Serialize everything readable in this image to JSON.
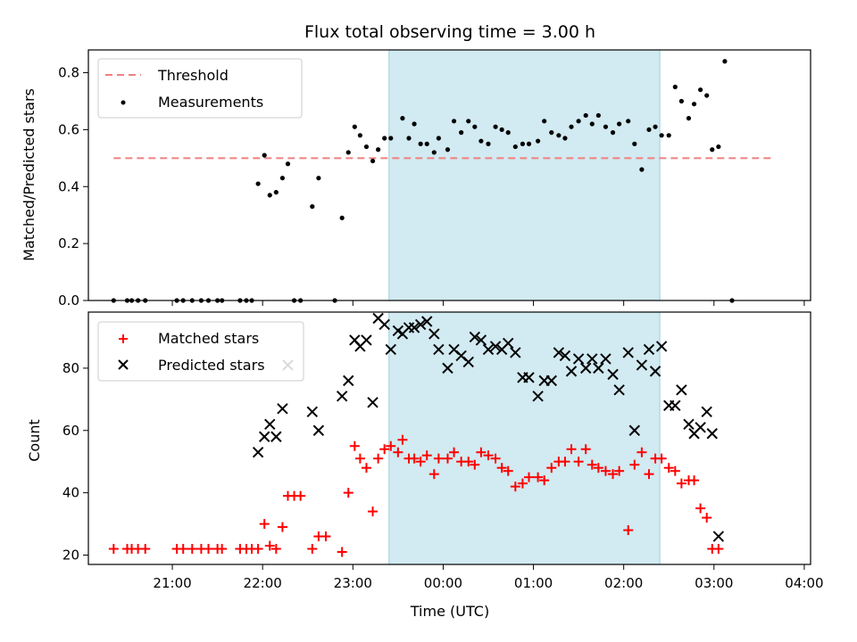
{
  "chart_data": [
    {
      "type": "scatter",
      "title": "Flux total observing time = 3.00 h",
      "xlabel": "",
      "ylabel": "Matched/Predicted stars",
      "xlim_hours": [
        -3.93,
        4.07
      ],
      "ylim": [
        0,
        0.88
      ],
      "yticks": [
        0.0,
        0.2,
        0.4,
        0.6,
        0.8
      ],
      "ytick_labels": [
        "0.0",
        "0.2",
        "0.4",
        "0.6",
        "0.8"
      ],
      "shaded_region_hours": [
        -0.6,
        2.4
      ],
      "shaded_color": "#add8e6",
      "legend_position": "upper left",
      "threshold": {
        "name": "Threshold",
        "y": 0.5,
        "x_range_hours": [
          -3.65,
          3.65
        ],
        "color": "#f08080"
      },
      "series": [
        {
          "name": "Measurements",
          "color": "#000000",
          "marker": "dot",
          "points": [
            [
              -3.65,
              0
            ],
            [
              -3.5,
              0
            ],
            [
              -3.45,
              0
            ],
            [
              -3.38,
              0
            ],
            [
              -3.3,
              0
            ],
            [
              -2.95,
              0
            ],
            [
              -2.88,
              0
            ],
            [
              -2.78,
              0
            ],
            [
              -2.68,
              0
            ],
            [
              -2.6,
              0
            ],
            [
              -2.5,
              0
            ],
            [
              -2.45,
              0
            ],
            [
              -2.25,
              0
            ],
            [
              -2.18,
              0
            ],
            [
              -2.12,
              0
            ],
            [
              -2.05,
              0.41
            ],
            [
              -1.98,
              0.51
            ],
            [
              -1.92,
              0.37
            ],
            [
              -1.85,
              0.38
            ],
            [
              -1.78,
              0.43
            ],
            [
              -1.72,
              0.48
            ],
            [
              -1.65,
              0
            ],
            [
              -1.58,
              0
            ],
            [
              -1.45,
              0.33
            ],
            [
              -1.38,
              0.43
            ],
            [
              -1.2,
              0
            ],
            [
              -1.12,
              0.29
            ],
            [
              -1.05,
              0.52
            ],
            [
              -0.98,
              0.61
            ],
            [
              -0.92,
              0.58
            ],
            [
              -0.85,
              0.54
            ],
            [
              -0.78,
              0.49
            ],
            [
              -0.72,
              0.53
            ],
            [
              -0.65,
              0.57
            ],
            [
              -0.58,
              0.57
            ],
            [
              -0.45,
              0.64
            ],
            [
              -0.38,
              0.57
            ],
            [
              -0.32,
              0.62
            ],
            [
              -0.25,
              0.55
            ],
            [
              -0.18,
              0.55
            ],
            [
              -0.1,
              0.52
            ],
            [
              -0.05,
              0.57
            ],
            [
              0.05,
              0.53
            ],
            [
              0.12,
              0.63
            ],
            [
              0.2,
              0.59
            ],
            [
              0.28,
              0.63
            ],
            [
              0.35,
              0.61
            ],
            [
              0.42,
              0.56
            ],
            [
              0.5,
              0.55
            ],
            [
              0.58,
              0.61
            ],
            [
              0.65,
              0.6
            ],
            [
              0.72,
              0.59
            ],
            [
              0.8,
              0.54
            ],
            [
              0.88,
              0.55
            ],
            [
              0.95,
              0.55
            ],
            [
              1.05,
              0.56
            ],
            [
              1.12,
              0.63
            ],
            [
              1.2,
              0.59
            ],
            [
              1.28,
              0.58
            ],
            [
              1.35,
              0.57
            ],
            [
              1.42,
              0.61
            ],
            [
              1.5,
              0.63
            ],
            [
              1.58,
              0.65
            ],
            [
              1.65,
              0.62
            ],
            [
              1.72,
              0.65
            ],
            [
              1.8,
              0.61
            ],
            [
              1.88,
              0.59
            ],
            [
              1.95,
              0.62
            ],
            [
              2.05,
              0.63
            ],
            [
              2.12,
              0.55
            ],
            [
              2.2,
              0.46
            ],
            [
              2.28,
              0.6
            ],
            [
              2.35,
              0.61
            ],
            [
              2.42,
              0.58
            ],
            [
              2.5,
              0.58
            ],
            [
              2.57,
              0.75
            ],
            [
              2.64,
              0.7
            ],
            [
              2.72,
              0.64
            ],
            [
              2.78,
              0.69
            ],
            [
              2.85,
              0.74
            ],
            [
              2.92,
              0.72
            ],
            [
              2.98,
              0.53
            ],
            [
              3.05,
              0.54
            ],
            [
              3.12,
              0.84
            ],
            [
              3.2,
              0
            ]
          ]
        }
      ]
    },
    {
      "type": "scatter",
      "title": "",
      "xlabel": "Time (UTC)",
      "ylabel": "Count",
      "xlim_hours": [
        -3.93,
        4.07
      ],
      "ylim": [
        17,
        98
      ],
      "yticks": [
        20,
        40,
        60,
        80
      ],
      "ytick_labels": [
        "20",
        "40",
        "60",
        "80"
      ],
      "xticks_hours": [
        -3,
        -2,
        -1,
        0,
        1,
        2,
        3,
        4
      ],
      "xtick_labels": [
        "21:00",
        "22:00",
        "23:00",
        "00:00",
        "01:00",
        "02:00",
        "03:00",
        "04:00"
      ],
      "shaded_region_hours": [
        -0.6,
        2.4
      ],
      "legend_position": "upper left",
      "series": [
        {
          "name": "Matched stars",
          "color": "#ff0000",
          "marker": "plus",
          "points": [
            [
              -3.65,
              22
            ],
            [
              -3.5,
              22
            ],
            [
              -3.45,
              22
            ],
            [
              -3.38,
              22
            ],
            [
              -3.3,
              22
            ],
            [
              -2.95,
              22
            ],
            [
              -2.88,
              22
            ],
            [
              -2.78,
              22
            ],
            [
              -2.68,
              22
            ],
            [
              -2.6,
              22
            ],
            [
              -2.5,
              22
            ],
            [
              -2.45,
              22
            ],
            [
              -2.25,
              22
            ],
            [
              -2.18,
              22
            ],
            [
              -2.12,
              22
            ],
            [
              -2.05,
              22
            ],
            [
              -1.98,
              30
            ],
            [
              -1.92,
              23
            ],
            [
              -1.85,
              22
            ],
            [
              -1.78,
              29
            ],
            [
              -1.72,
              39
            ],
            [
              -1.65,
              39
            ],
            [
              -1.58,
              39
            ],
            [
              -1.45,
              22
            ],
            [
              -1.38,
              26
            ],
            [
              -1.3,
              26
            ],
            [
              -1.12,
              21
            ],
            [
              -1.05,
              40
            ],
            [
              -0.98,
              55
            ],
            [
              -0.92,
              51
            ],
            [
              -0.85,
              48
            ],
            [
              -0.78,
              34
            ],
            [
              -0.72,
              51
            ],
            [
              -0.65,
              54
            ],
            [
              -0.58,
              55
            ],
            [
              -0.5,
              53
            ],
            [
              -0.45,
              57
            ],
            [
              -0.38,
              51
            ],
            [
              -0.32,
              51
            ],
            [
              -0.25,
              50
            ],
            [
              -0.18,
              52
            ],
            [
              -0.1,
              46
            ],
            [
              -0.05,
              51
            ],
            [
              0.05,
              51
            ],
            [
              0.12,
              53
            ],
            [
              0.2,
              50
            ],
            [
              0.28,
              50
            ],
            [
              0.35,
              49
            ],
            [
              0.42,
              53
            ],
            [
              0.5,
              52
            ],
            [
              0.58,
              51
            ],
            [
              0.65,
              48
            ],
            [
              0.72,
              47
            ],
            [
              0.8,
              42
            ],
            [
              0.88,
              43
            ],
            [
              0.95,
              45
            ],
            [
              1.05,
              45
            ],
            [
              1.12,
              44
            ],
            [
              1.2,
              48
            ],
            [
              1.28,
              50
            ],
            [
              1.35,
              50
            ],
            [
              1.42,
              54
            ],
            [
              1.5,
              50
            ],
            [
              1.58,
              54
            ],
            [
              1.65,
              49
            ],
            [
              1.72,
              48
            ],
            [
              1.8,
              47
            ],
            [
              1.88,
              46
            ],
            [
              1.95,
              47
            ],
            [
              2.05,
              28
            ],
            [
              2.12,
              49
            ],
            [
              2.2,
              53
            ],
            [
              2.28,
              46
            ],
            [
              2.35,
              51
            ],
            [
              2.42,
              51
            ],
            [
              2.5,
              48
            ],
            [
              2.57,
              47
            ],
            [
              2.64,
              43
            ],
            [
              2.72,
              44
            ],
            [
              2.78,
              44
            ],
            [
              2.85,
              35
            ],
            [
              2.92,
              32
            ],
            [
              2.98,
              22
            ],
            [
              3.05,
              22
            ]
          ]
        },
        {
          "name": "Predicted stars",
          "color": "#000000",
          "marker": "x",
          "points": [
            [
              -2.05,
              53
            ],
            [
              -1.98,
              58
            ],
            [
              -1.92,
              62
            ],
            [
              -1.85,
              58
            ],
            [
              -1.78,
              67
            ],
            [
              -1.72,
              81
            ],
            [
              -1.45,
              66
            ],
            [
              -1.38,
              60
            ],
            [
              -1.12,
              71
            ],
            [
              -1.05,
              76
            ],
            [
              -0.98,
              89
            ],
            [
              -0.92,
              87
            ],
            [
              -0.85,
              89
            ],
            [
              -0.78,
              69
            ],
            [
              -0.72,
              96
            ],
            [
              -0.65,
              94
            ],
            [
              -0.58,
              86
            ],
            [
              -0.5,
              92
            ],
            [
              -0.45,
              91
            ],
            [
              -0.38,
              93
            ],
            [
              -0.32,
              93
            ],
            [
              -0.25,
              94
            ],
            [
              -0.18,
              95
            ],
            [
              -0.1,
              91
            ],
            [
              -0.05,
              86
            ],
            [
              0.05,
              80
            ],
            [
              0.12,
              86
            ],
            [
              0.2,
              84
            ],
            [
              0.28,
              82
            ],
            [
              0.35,
              90
            ],
            [
              0.42,
              89
            ],
            [
              0.5,
              86
            ],
            [
              0.58,
              87
            ],
            [
              0.65,
              86
            ],
            [
              0.72,
              88
            ],
            [
              0.8,
              85
            ],
            [
              0.88,
              77
            ],
            [
              0.95,
              77
            ],
            [
              1.05,
              71
            ],
            [
              1.12,
              76
            ],
            [
              1.2,
              76
            ],
            [
              1.28,
              85
            ],
            [
              1.35,
              84
            ],
            [
              1.42,
              79
            ],
            [
              1.5,
              83
            ],
            [
              1.58,
              80
            ],
            [
              1.65,
              83
            ],
            [
              1.72,
              80
            ],
            [
              1.8,
              83
            ],
            [
              1.88,
              78
            ],
            [
              1.95,
              73
            ],
            [
              2.05,
              85
            ],
            [
              2.12,
              60
            ],
            [
              2.2,
              81
            ],
            [
              2.28,
              86
            ],
            [
              2.35,
              79
            ],
            [
              2.42,
              87
            ],
            [
              2.5,
              68
            ],
            [
              2.57,
              68
            ],
            [
              2.64,
              73
            ],
            [
              2.72,
              62
            ],
            [
              2.78,
              59
            ],
            [
              2.85,
              61
            ],
            [
              2.92,
              66
            ],
            [
              2.98,
              59
            ],
            [
              3.05,
              26
            ]
          ]
        }
      ]
    }
  ]
}
